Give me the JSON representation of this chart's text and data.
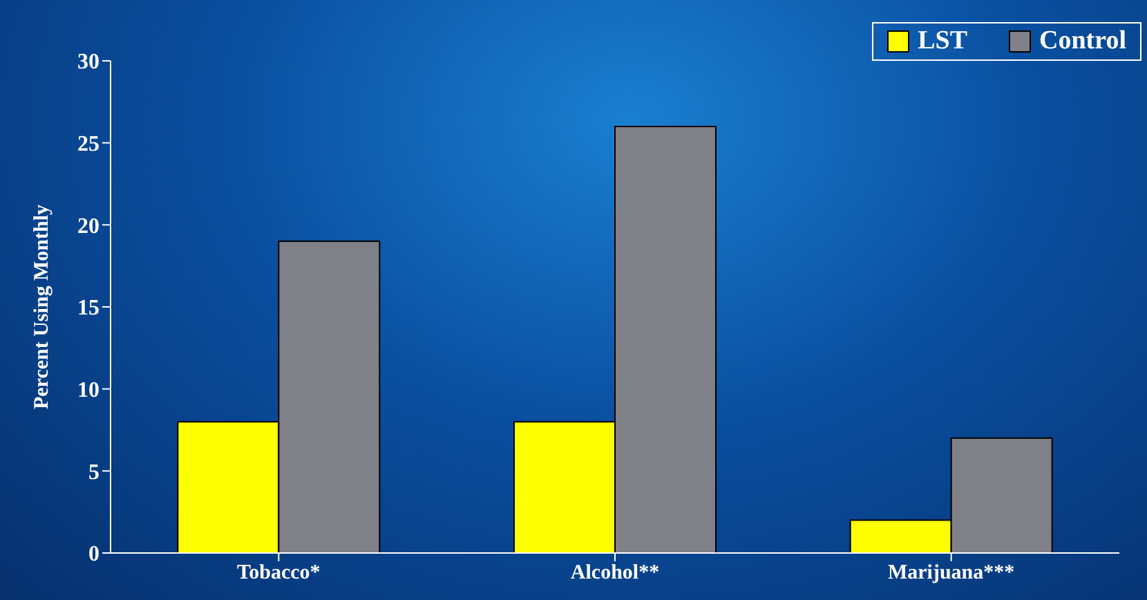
{
  "chart_data": {
    "type": "bar",
    "ylabel": "Percent Using Monthly",
    "categories": [
      "Tobacco*",
      "Alcohol**",
      "Marijuana***"
    ],
    "series": [
      {
        "name": "LST",
        "color": "#ffff00",
        "values": [
          8,
          8,
          2
        ]
      },
      {
        "name": "Control",
        "color": "#808088",
        "values": [
          19,
          26,
          7
        ]
      }
    ],
    "ylim": [
      0,
      30
    ],
    "yticks": [
      0,
      5,
      10,
      15,
      20,
      25,
      30
    ],
    "grid": false,
    "legend": "top right"
  }
}
